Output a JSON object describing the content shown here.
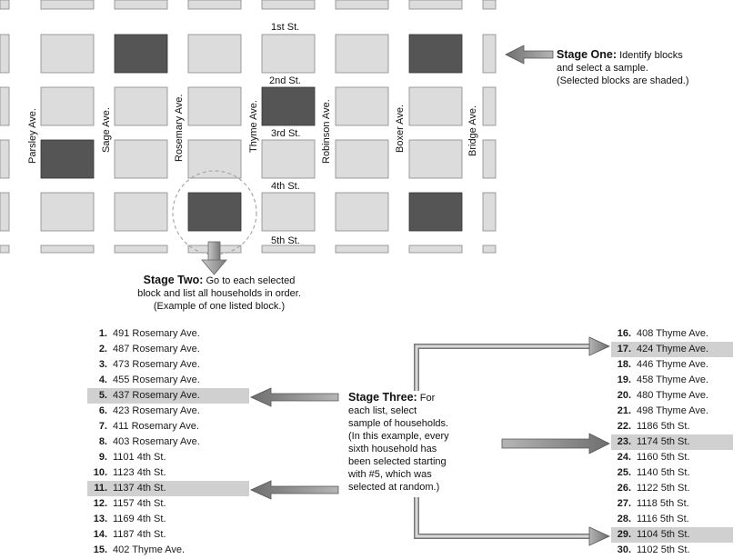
{
  "streets": [
    "1st St.",
    "2nd St.",
    "3rd St.",
    "4th St.",
    "5th St."
  ],
  "avenues": [
    "Parsley Ave.",
    "Sage Ave.",
    "Rosemary Ave.",
    "Thyme Ave.",
    "Robinson Ave.",
    "Boxer Ave.",
    "Bridge Ave."
  ],
  "stage_one": {
    "title": "Stage One:",
    "text1": "Identify blocks",
    "text2": "and select a sample.",
    "text3": "(Selected blocks are shaded.)"
  },
  "stage_two": {
    "title": "Stage Two:",
    "text1": "Go to each selected",
    "text2": "block and list all households in order.",
    "text3": "(Example of one listed block.)"
  },
  "stage_three": {
    "title": "Stage Three:",
    "title_rest": "For",
    "lines": [
      "each list, select",
      "sample of households.",
      "(In this example, every",
      "sixth household has",
      "been selected starting",
      "with #5, which was",
      "selected at random.)"
    ]
  },
  "households_left": [
    {
      "n": "1.",
      "addr": "491 Rosemary Ave."
    },
    {
      "n": "2.",
      "addr": "487 Rosemary Ave."
    },
    {
      "n": "3.",
      "addr": "473 Rosemary Ave."
    },
    {
      "n": "4.",
      "addr": "455 Rosemary Ave."
    },
    {
      "n": "5.",
      "addr": "437 Rosemary Ave.",
      "selected": true
    },
    {
      "n": "6.",
      "addr": "423 Rosemary Ave."
    },
    {
      "n": "7.",
      "addr": "411 Rosemary Ave."
    },
    {
      "n": "8.",
      "addr": "403 Rosemary Ave."
    },
    {
      "n": "9.",
      "addr": "1101 4th St."
    },
    {
      "n": "10.",
      "addr": "1123 4th St."
    },
    {
      "n": "11.",
      "addr": "1137 4th St.",
      "selected": true
    },
    {
      "n": "12.",
      "addr": "1157 4th St."
    },
    {
      "n": "13.",
      "addr": "1169 4th St."
    },
    {
      "n": "14.",
      "addr": "1187 4th St."
    },
    {
      "n": "15.",
      "addr": "402 Thyme Ave."
    }
  ],
  "households_right": [
    {
      "n": "16.",
      "addr": "408 Thyme Ave."
    },
    {
      "n": "17.",
      "addr": "424 Thyme Ave.",
      "selected": true
    },
    {
      "n": "18.",
      "addr": "446 Thyme Ave."
    },
    {
      "n": "19.",
      "addr": "458 Thyme Ave."
    },
    {
      "n": "20.",
      "addr": "480 Thyme Ave."
    },
    {
      "n": "21.",
      "addr": "498 Thyme Ave."
    },
    {
      "n": "22.",
      "addr": "1186 5th St."
    },
    {
      "n": "23.",
      "addr": "1174 5th St.",
      "selected": true
    },
    {
      "n": "24.",
      "addr": "1160 5th St."
    },
    {
      "n": "25.",
      "addr": "1140 5th St."
    },
    {
      "n": "26.",
      "addr": "1122 5th St."
    },
    {
      "n": "27.",
      "addr": "1118 5th St."
    },
    {
      "n": "28.",
      "addr": "1116 5th St."
    },
    {
      "n": "29.",
      "addr": "1104 5th St.",
      "selected": true
    },
    {
      "n": "30.",
      "addr": "1102 5th St."
    }
  ],
  "colors": {
    "block": "#dcdcdc",
    "selected_block": "#555555",
    "highlight": "#d0d0d0",
    "arrow": "#8a8a8a"
  }
}
